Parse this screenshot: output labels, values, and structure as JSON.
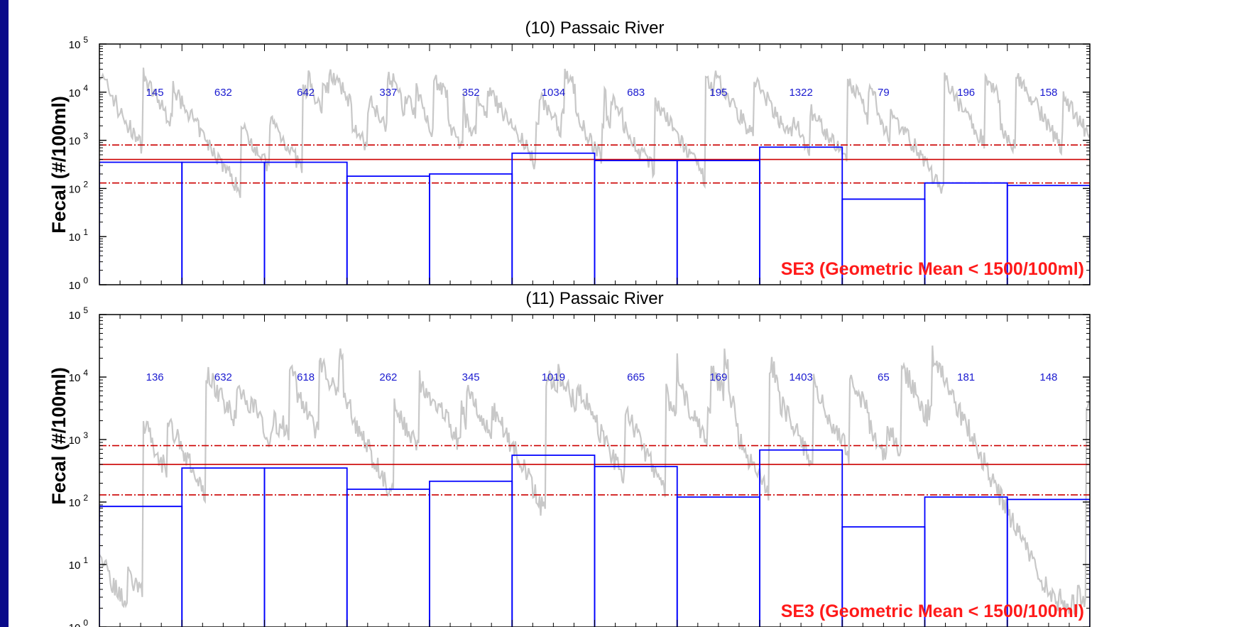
{
  "chart_data": [
    {
      "type": "line",
      "title": "(10) Passaic River",
      "ylabel": "Fecal (#/100ml)",
      "yscale": "log",
      "ylim": [
        1,
        100000
      ],
      "ytick_base": "10",
      "ytick_exponents": [
        "0",
        "1",
        "2",
        "3",
        "4",
        "5"
      ],
      "period_counts": [
        "145",
        "632",
        "642",
        "337",
        "352",
        "1034",
        "683",
        "195",
        "1322",
        "79",
        "196",
        "158"
      ],
      "geometric_means": [
        350,
        350,
        350,
        180,
        200,
        540,
        380,
        380,
        720,
        60,
        130,
        115
      ],
      "reference_lines": [
        {
          "value": 800,
          "style": "dash-dot"
        },
        {
          "value": 400,
          "style": "solid"
        },
        {
          "value": 130,
          "style": "dash-dot"
        }
      ],
      "annotation": "SE3 (Geometric Mean < 1500/100ml)",
      "series_colors": {
        "time_series": "#c8c8c8",
        "geometric_mean": "#0000ff",
        "reference": "#cc0000"
      }
    },
    {
      "type": "line",
      "title": "(11) Passaic River",
      "ylabel": "Fecal (#/100ml)",
      "yscale": "log",
      "ylim": [
        1,
        100000
      ],
      "ytick_base": "10",
      "ytick_exponents": [
        "0",
        "1",
        "2",
        "3",
        "4",
        "5"
      ],
      "period_counts": [
        "136",
        "632",
        "618",
        "262",
        "345",
        "1019",
        "665",
        "169",
        "1403",
        "65",
        "181",
        "148"
      ],
      "geometric_means": [
        85,
        350,
        350,
        160,
        215,
        560,
        370,
        120,
        680,
        40,
        120,
        110
      ],
      "reference_lines": [
        {
          "value": 800,
          "style": "dash-dot"
        },
        {
          "value": 400,
          "style": "solid"
        },
        {
          "value": 130,
          "style": "dash-dot"
        }
      ],
      "annotation": "SE3 (Geometric Mean < 1500/100ml)",
      "series_colors": {
        "time_series": "#c8c8c8",
        "geometric_mean": "#0000ff",
        "reference": "#cc0000"
      }
    }
  ]
}
